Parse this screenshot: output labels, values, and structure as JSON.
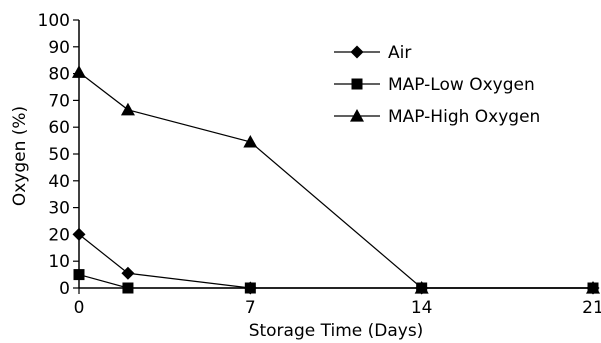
{
  "chart_data": {
    "type": "line",
    "title": "",
    "xlabel": "Storage Time (Days)",
    "ylabel": "Oxygen (%)",
    "xlim": [
      0,
      21
    ],
    "ylim": [
      0,
      100
    ],
    "xticks": [
      0,
      7,
      14,
      21
    ],
    "yticks": [
      0,
      10,
      20,
      30,
      40,
      50,
      60,
      70,
      80,
      90,
      100
    ],
    "grid": false,
    "legend_position": "top-right",
    "line_color": "#000000",
    "series": [
      {
        "name": "Air",
        "marker": "diamond",
        "x": [
          0,
          2,
          7,
          14,
          21
        ],
        "values": [
          20,
          5.5,
          0,
          0,
          0
        ]
      },
      {
        "name": "MAP-Low Oxygen",
        "marker": "square",
        "x": [
          0,
          2,
          7,
          14,
          21
        ],
        "values": [
          5,
          0,
          0,
          0,
          0
        ]
      },
      {
        "name": "MAP-High Oxygen",
        "marker": "triangle",
        "x": [
          0,
          2,
          7,
          14,
          21
        ],
        "values": [
          80.5,
          66.5,
          54.5,
          0,
          0
        ]
      }
    ]
  }
}
